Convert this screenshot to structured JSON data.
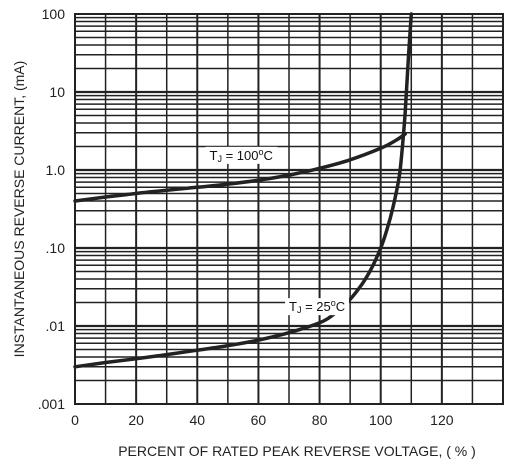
{
  "chart_data": {
    "type": "line",
    "title": "",
    "xlabel": "PERCENT OF RATED PEAK REVERSE VOLTAGE, ( % )",
    "ylabel": "INSTANTANEOUS REVERSE CURRENT, (mA)",
    "xlim": [
      0,
      140
    ],
    "ylim": [
      0.001,
      100
    ],
    "yscale": "log",
    "grid": true,
    "x_ticks": [
      0,
      20,
      40,
      60,
      80,
      100,
      120
    ],
    "x_tick_labels": [
      "0",
      "20",
      "40",
      "60",
      "80",
      "100",
      "120"
    ],
    "y_ticks": [
      0.001,
      0.01,
      0.1,
      1,
      10,
      100
    ],
    "y_tick_labels": [
      ".001",
      ".01",
      ".10",
      "1.0",
      "10",
      "100"
    ],
    "series": [
      {
        "name": "",
        "label_parts": [
          "T",
          "J",
          " = 100",
          "o",
          "C"
        ],
        "color": "#222222",
        "x": [
          0,
          10,
          20,
          30,
          40,
          50,
          60,
          70,
          80,
          90,
          100,
          105,
          108
        ],
        "y": [
          0.4,
          0.45,
          0.5,
          0.55,
          0.6,
          0.66,
          0.74,
          0.86,
          1.05,
          1.35,
          1.9,
          2.4,
          2.9
        ]
      },
      {
        "name": "",
        "label_parts": [
          "T",
          "J",
          " = 25",
          "o",
          "C"
        ],
        "color": "#222222",
        "x": [
          0,
          10,
          20,
          30,
          40,
          50,
          60,
          70,
          80,
          85,
          90,
          94,
          97,
          100,
          102,
          104,
          106,
          107,
          108,
          109,
          110
        ],
        "y": [
          0.003,
          0.0034,
          0.0038,
          0.0043,
          0.0049,
          0.0056,
          0.0066,
          0.0082,
          0.011,
          0.0145,
          0.022,
          0.035,
          0.055,
          0.1,
          0.17,
          0.33,
          0.8,
          1.8,
          5.5,
          25,
          100
        ]
      }
    ]
  }
}
